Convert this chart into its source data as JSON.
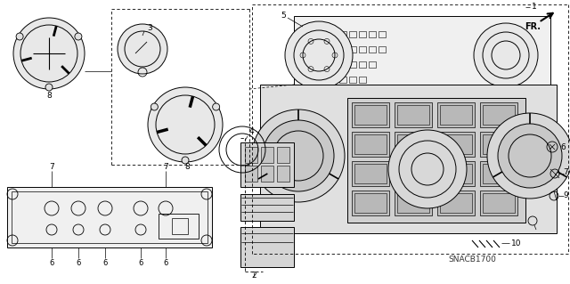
{
  "bg_color": "#ffffff",
  "line_color": "#000000",
  "fig_width": 6.4,
  "fig_height": 3.19,
  "dpi": 100,
  "watermark": "SNACB1700"
}
